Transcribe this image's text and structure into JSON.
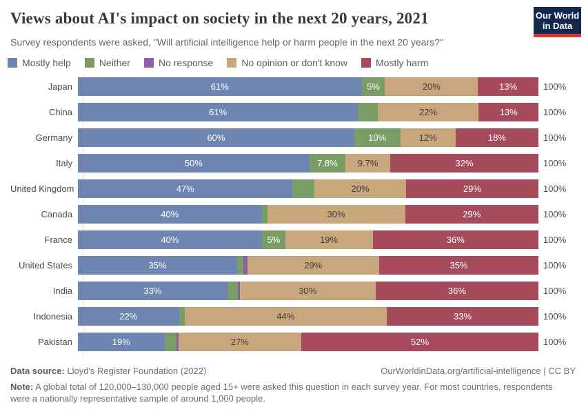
{
  "header": {
    "title": "Views about AI's impact on society in the next 20 years, 2021",
    "subtitle": "Survey respondents were asked, \"Will artificial intelligence help or harm people in the next 20 years?\"",
    "logo": {
      "line1": "Our World",
      "line2": "in Data"
    }
  },
  "colors": {
    "mostly_help": "#6e85b2",
    "neither": "#7a9d65",
    "no_response": "#8c5fa8",
    "no_opinion": "#c9a77c",
    "mostly_harm": "#a54b5c",
    "logo_bg": "#12294f",
    "logo_accent": "#d93a34",
    "label_on_dark": "#ffffff",
    "label_on_tan": "#3c3c3c"
  },
  "legend": [
    {
      "label": "Mostly help",
      "color": "#6e85b2"
    },
    {
      "label": "Neither",
      "color": "#7a9d65"
    },
    {
      "label": "No response",
      "color": "#8c5fa8"
    },
    {
      "label": "No opinion or don't know",
      "color": "#c9a77c"
    },
    {
      "label": "Mostly harm",
      "color": "#a54b5c"
    }
  ],
  "chart_data": {
    "type": "bar",
    "variant": "horizontal-stacked-percentage",
    "title": "Views about AI's impact on society in the next 20 years, 2021",
    "categories": [
      "Japan",
      "China",
      "Germany",
      "Italy",
      "United Kingdom",
      "Canada",
      "France",
      "United States",
      "India",
      "Indonesia",
      "Pakistan"
    ],
    "xlim": [
      0,
      100
    ],
    "axis_total_label": "100%",
    "series": [
      {
        "name": "Mostly help",
        "key": "mostly-help",
        "color": "#6e85b2",
        "label_color": "#ffffff",
        "values": [
          61,
          61,
          60,
          50,
          47,
          40,
          40,
          35,
          33,
          22,
          19
        ],
        "labels": [
          "61%",
          "61%",
          "60%",
          "50%",
          "47%",
          "40%",
          "40%",
          "35%",
          "33%",
          "22%",
          "19%"
        ]
      },
      {
        "name": "Neither",
        "key": "neither",
        "color": "#7a9d65",
        "label_color": "#ffffff",
        "values": [
          5,
          4.3,
          10,
          7.8,
          4.8,
          1.2,
          5,
          1.4,
          2.3,
          1.2,
          2.6
        ],
        "labels": [
          "5%",
          "",
          "10%",
          "7.8%",
          "",
          "",
          "5%",
          "",
          "",
          "",
          ""
        ]
      },
      {
        "name": "No response",
        "key": "no-response",
        "color": "#8c5fa8",
        "label_color": "#ffffff",
        "values": [
          0,
          0,
          0,
          0,
          0,
          0,
          0,
          0.8,
          0.5,
          0,
          0.4
        ],
        "labels": [
          "",
          "",
          "",
          "",
          "",
          "",
          "",
          "",
          "",
          "",
          ""
        ]
      },
      {
        "name": "No opinion or don't know",
        "key": "no-opinion",
        "color": "#c9a77c",
        "label_color": "#3c3c3c",
        "values": [
          20,
          22,
          12,
          9.7,
          20,
          30,
          19,
          29,
          30,
          44,
          27
        ],
        "labels": [
          "20%",
          "22%",
          "12%",
          "9.7%",
          "20%",
          "30%",
          "19%",
          "29%",
          "30%",
          "44%",
          "27%"
        ]
      },
      {
        "name": "Mostly harm",
        "key": "mostly-harm",
        "color": "#a54b5c",
        "label_color": "#ffffff",
        "values": [
          13,
          13,
          18,
          32,
          29,
          29,
          36,
          35,
          36,
          33,
          52
        ],
        "labels": [
          "13%",
          "13%",
          "18%",
          "32%",
          "29%",
          "29%",
          "36%",
          "35%",
          "36%",
          "33%",
          "52%"
        ]
      }
    ]
  },
  "footer": {
    "datasource_label": "Data source:",
    "datasource_text": " Lloyd's Register Foundation (2022)",
    "attribution": "OurWorldinData.org/artificial-intelligence | CC BY",
    "note_label": "Note:",
    "note_text": " A global total of 120,000–130,000 people aged 15+ were asked this question in each survey year. For most countries, respondents were a nationally representative sample of around 1,000 people."
  }
}
